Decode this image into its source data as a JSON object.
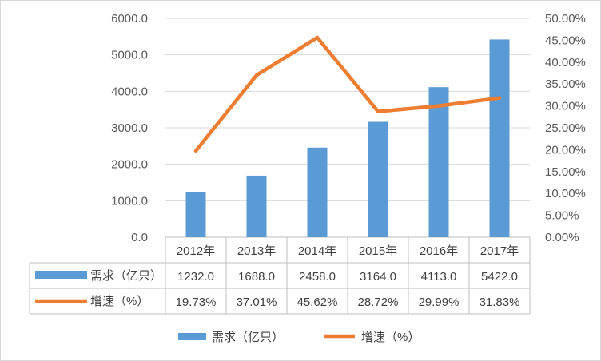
{
  "chart_data": {
    "type": "bar",
    "categories": [
      "2012年",
      "2013年",
      "2014年",
      "2015年",
      "2016年",
      "2017年"
    ],
    "series": [
      {
        "name": "需求（亿只）",
        "type": "bar",
        "axis": "left",
        "color": "#5b9bd5",
        "values": [
          1232.0,
          1688.0,
          2458.0,
          3164.0,
          4113.0,
          5422.0
        ],
        "labels": [
          "1232.0",
          "1688.0",
          "2458.0",
          "3164.0",
          "4113.0",
          "5422.0"
        ]
      },
      {
        "name": "增速（%）",
        "type": "line",
        "axis": "right",
        "color": "#ed7d31",
        "values": [
          19.73,
          37.01,
          45.62,
          28.72,
          29.99,
          31.83
        ],
        "labels": [
          "19.73%",
          "37.01%",
          "45.62%",
          "28.72%",
          "29.99%",
          "31.83%"
        ]
      }
    ],
    "y_left": {
      "range": [
        0,
        6000
      ],
      "ticks": [
        "0.0",
        "1000.0",
        "2000.0",
        "3000.0",
        "4000.0",
        "5000.0",
        "6000.0"
      ]
    },
    "y_right": {
      "range": [
        0,
        50
      ],
      "ticks": [
        "0.00%",
        "5.00%",
        "10.00%",
        "15.00%",
        "20.00%",
        "25.00%",
        "30.00%",
        "35.00%",
        "40.00%",
        "45.00%",
        "50.00%"
      ]
    },
    "grid": true,
    "data_table": true,
    "legend_position": "bottom"
  }
}
